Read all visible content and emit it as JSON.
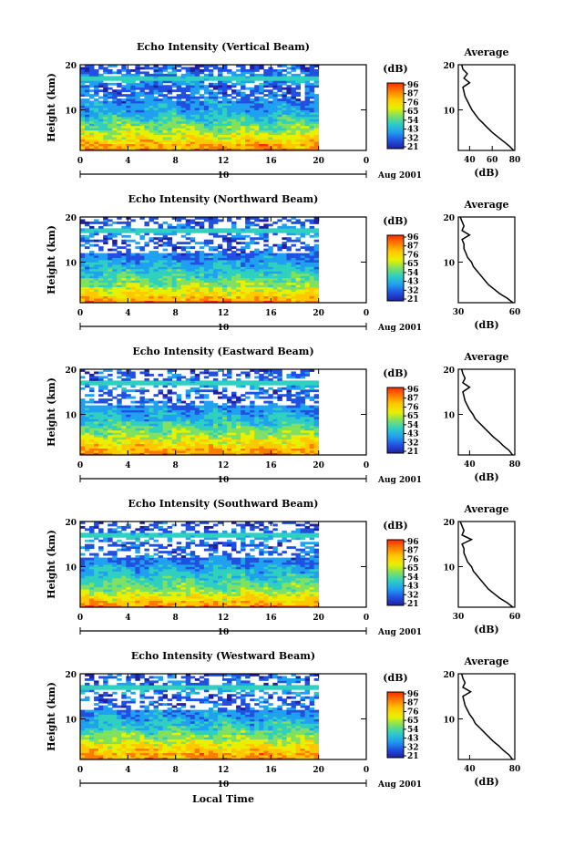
{
  "figure": {
    "xlabel": "Local Time",
    "date_label": "Aug 2001",
    "date_day": "10",
    "colorbar_unit": "(dB)",
    "colorbar_ticks": [
      "96",
      "87",
      "76",
      "65",
      "54",
      "43",
      "32",
      "21"
    ],
    "colorbar_colors": [
      "#ff2a00",
      "#ff7a00",
      "#ffc800",
      "#e8f000",
      "#80e060",
      "#30d0c0",
      "#20a0f0",
      "#2050e0",
      "#2020a0"
    ]
  },
  "chart_data": [
    {
      "type": "heatmap",
      "title": "Echo Intensity (Vertical Beam)",
      "xlabel": "Local Time",
      "ylabel": "Height (km)",
      "x_ticks": [
        "0",
        "4",
        "8",
        "12",
        "16",
        "20",
        "0"
      ],
      "y_ticks": [
        "20",
        "10"
      ],
      "xlim": [
        0,
        24
      ],
      "ylim": [
        1,
        20
      ],
      "data_end_hour": 20,
      "colorbar": {
        "unit": "(dB)",
        "ticks": [
          "96",
          "87",
          "76",
          "65",
          "54",
          "43",
          "32",
          "21"
        ]
      },
      "profile": {
        "title": "Average",
        "xlabel": "(dB)",
        "x_ticks": [
          "40",
          "60",
          "80"
        ],
        "xlim": [
          30,
          80
        ],
        "y_ticks": [
          "20",
          "10"
        ],
        "heights": [
          1,
          2,
          3,
          4,
          5,
          6,
          7,
          8,
          9,
          10,
          11,
          12,
          13,
          14,
          15,
          16,
          17,
          18,
          19,
          20
        ],
        "values": [
          79,
          75,
          70,
          65,
          60,
          56,
          52,
          48,
          45,
          42,
          40,
          38,
          36,
          35,
          34,
          40,
          35,
          38,
          34,
          33
        ]
      }
    },
    {
      "type": "heatmap",
      "title": "Echo Intensity (Northward Beam)",
      "xlabel": "Local Time",
      "ylabel": "Height (km)",
      "x_ticks": [
        "0",
        "4",
        "8",
        "12",
        "16",
        "20",
        "0"
      ],
      "y_ticks": [
        "20",
        "10"
      ],
      "xlim": [
        0,
        24
      ],
      "ylim": [
        1,
        20
      ],
      "data_end_hour": 20,
      "colorbar": {
        "unit": "(dB)",
        "ticks": [
          "96",
          "87",
          "76",
          "65",
          "54",
          "43",
          "32",
          "21"
        ]
      },
      "profile": {
        "title": "Average",
        "xlabel": "(dB)",
        "x_ticks": [
          "30",
          "60"
        ],
        "xlim": [
          30,
          60
        ],
        "y_ticks": [
          "20",
          "10"
        ],
        "heights": [
          1,
          2,
          3,
          4,
          5,
          6,
          7,
          8,
          9,
          10,
          11,
          12,
          13,
          14,
          15,
          16,
          17,
          18,
          19,
          20
        ],
        "values": [
          59,
          56,
          52,
          49,
          46,
          44,
          42,
          40,
          38,
          37,
          35,
          34,
          33,
          33,
          32,
          36,
          32,
          33,
          32,
          31
        ]
      }
    },
    {
      "type": "heatmap",
      "title": "Echo Intensity (Eastward Beam)",
      "xlabel": "Local Time",
      "ylabel": "Height (km)",
      "x_ticks": [
        "0",
        "4",
        "8",
        "12",
        "16",
        "20",
        "0"
      ],
      "y_ticks": [
        "20",
        "10"
      ],
      "xlim": [
        0,
        24
      ],
      "ylim": [
        1,
        20
      ],
      "data_end_hour": 20,
      "colorbar": {
        "unit": "(dB)",
        "ticks": [
          "96",
          "87",
          "76",
          "65",
          "54",
          "43",
          "32",
          "21"
        ]
      },
      "profile": {
        "title": "Average",
        "xlabel": "(dB)",
        "x_ticks": [
          "40",
          "80"
        ],
        "xlim": [
          30,
          80
        ],
        "y_ticks": [
          "20",
          "10"
        ],
        "heights": [
          1,
          2,
          3,
          4,
          5,
          6,
          7,
          8,
          9,
          10,
          11,
          12,
          13,
          14,
          15,
          16,
          17,
          18,
          19,
          20
        ],
        "values": [
          78,
          75,
          70,
          66,
          61,
          57,
          53,
          49,
          45,
          43,
          40,
          38,
          36,
          35,
          34,
          40,
          34,
          36,
          34,
          33
        ]
      }
    },
    {
      "type": "heatmap",
      "title": "Echo Intensity (Southward Beam)",
      "xlabel": "Local Time",
      "ylabel": "Height (km)",
      "x_ticks": [
        "0",
        "4",
        "8",
        "12",
        "16",
        "20",
        "0"
      ],
      "y_ticks": [
        "20",
        "10"
      ],
      "xlim": [
        0,
        24
      ],
      "ylim": [
        1,
        20
      ],
      "data_end_hour": 20,
      "colorbar": {
        "unit": "(dB)",
        "ticks": [
          "96",
          "87",
          "76",
          "65",
          "54",
          "43",
          "32",
          "21"
        ]
      },
      "profile": {
        "title": "Average",
        "xlabel": "(dB)",
        "x_ticks": [
          "30",
          "60"
        ],
        "xlim": [
          30,
          60
        ],
        "y_ticks": [
          "20",
          "10"
        ],
        "heights": [
          1,
          2,
          3,
          4,
          5,
          6,
          7,
          8,
          9,
          10,
          11,
          12,
          13,
          14,
          15,
          16,
          17,
          18,
          19,
          20
        ],
        "values": [
          59,
          56,
          52,
          49,
          46,
          44,
          42,
          40,
          38,
          37,
          35,
          34,
          33,
          33,
          32,
          37,
          32,
          33,
          32,
          31
        ]
      }
    },
    {
      "type": "heatmap",
      "title": "Echo Intensity (Westward Beam)",
      "xlabel": "Local Time",
      "ylabel": "Height (km)",
      "x_ticks": [
        "0",
        "4",
        "8",
        "12",
        "16",
        "20",
        "0"
      ],
      "y_ticks": [
        "20",
        "10"
      ],
      "xlim": [
        0,
        24
      ],
      "ylim": [
        1,
        20
      ],
      "data_end_hour": 20,
      "colorbar": {
        "unit": "(dB)",
        "ticks": [
          "96",
          "87",
          "76",
          "65",
          "54",
          "43",
          "32",
          "21"
        ]
      },
      "profile": {
        "title": "Average",
        "xlabel": "(dB)",
        "x_ticks": [
          "40",
          "80"
        ],
        "xlim": [
          30,
          80
        ],
        "y_ticks": [
          "20",
          "10"
        ],
        "heights": [
          1,
          2,
          3,
          4,
          5,
          6,
          7,
          8,
          9,
          10,
          11,
          12,
          13,
          14,
          15,
          16,
          17,
          18,
          19,
          20
        ],
        "values": [
          78,
          75,
          70,
          66,
          61,
          57,
          53,
          49,
          45,
          43,
          40,
          38,
          36,
          35,
          34,
          41,
          34,
          36,
          34,
          33
        ]
      }
    }
  ]
}
